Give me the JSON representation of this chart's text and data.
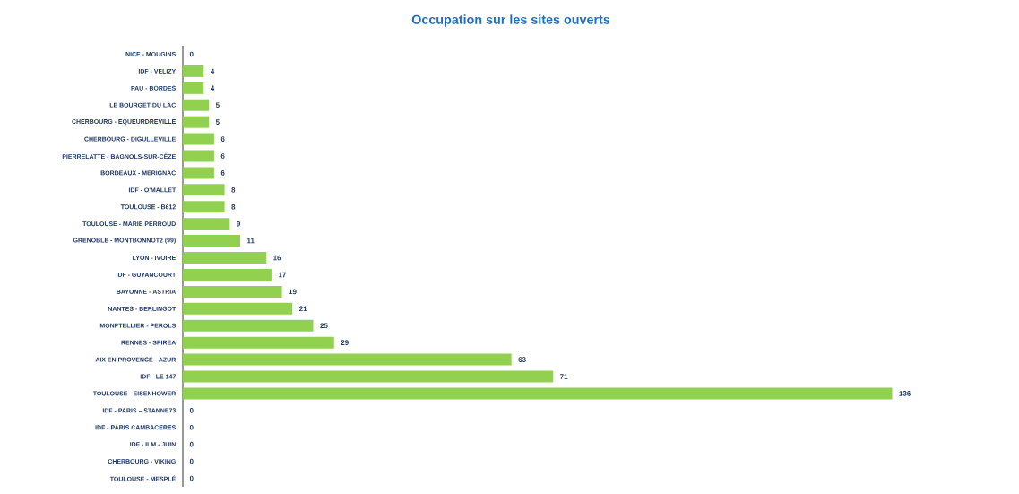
{
  "chart_data": {
    "type": "bar",
    "orientation": "horizontal",
    "title": "Occupation sur les sites ouverts",
    "categories": [
      "NICE - MOUGINS",
      "IDF - VELIZY",
      "PAU - BORDES",
      "LE BOURGET DU LAC",
      "CHERBOURG - EQUEURDREVILLE",
      "CHERBOURG - DIGULLEVILLE",
      "PIERRELATTE - BAGNOLS-SUR-CÈZE",
      "BORDEAUX - MERIGNAC",
      "IDF - O'MALLET",
      "TOULOUSE - B612",
      "TOULOUSE - MARIE PERROUD",
      "GRENOBLE - MONTBONNOT2 (99)",
      "LYON - IVOIRE",
      "IDF - GUYANCOURT",
      "BAYONNE - ASTRIA",
      "NANTES - BERLINGOT",
      "MONPTELLIER - PEROLS",
      "RENNES - SPIREA",
      "AIX EN PROVENCE - AZUR",
      "IDF - LE 147",
      "TOULOUSE - EISENHOWER",
      "IDF - PARIS – STANNE73",
      "IDF - PARIS CAMBACERES",
      "IDF - ILM - JUIN",
      "CHERBOURG - VIKING",
      "TOULOUSE - MESPLÉ"
    ],
    "values": [
      0,
      4,
      4,
      5,
      5,
      6,
      6,
      6,
      8,
      8,
      9,
      11,
      16,
      17,
      19,
      21,
      25,
      29,
      63,
      71,
      136,
      0,
      0,
      0,
      0,
      0
    ],
    "color": "#92d050",
    "data_labels": true,
    "grid": false
  }
}
